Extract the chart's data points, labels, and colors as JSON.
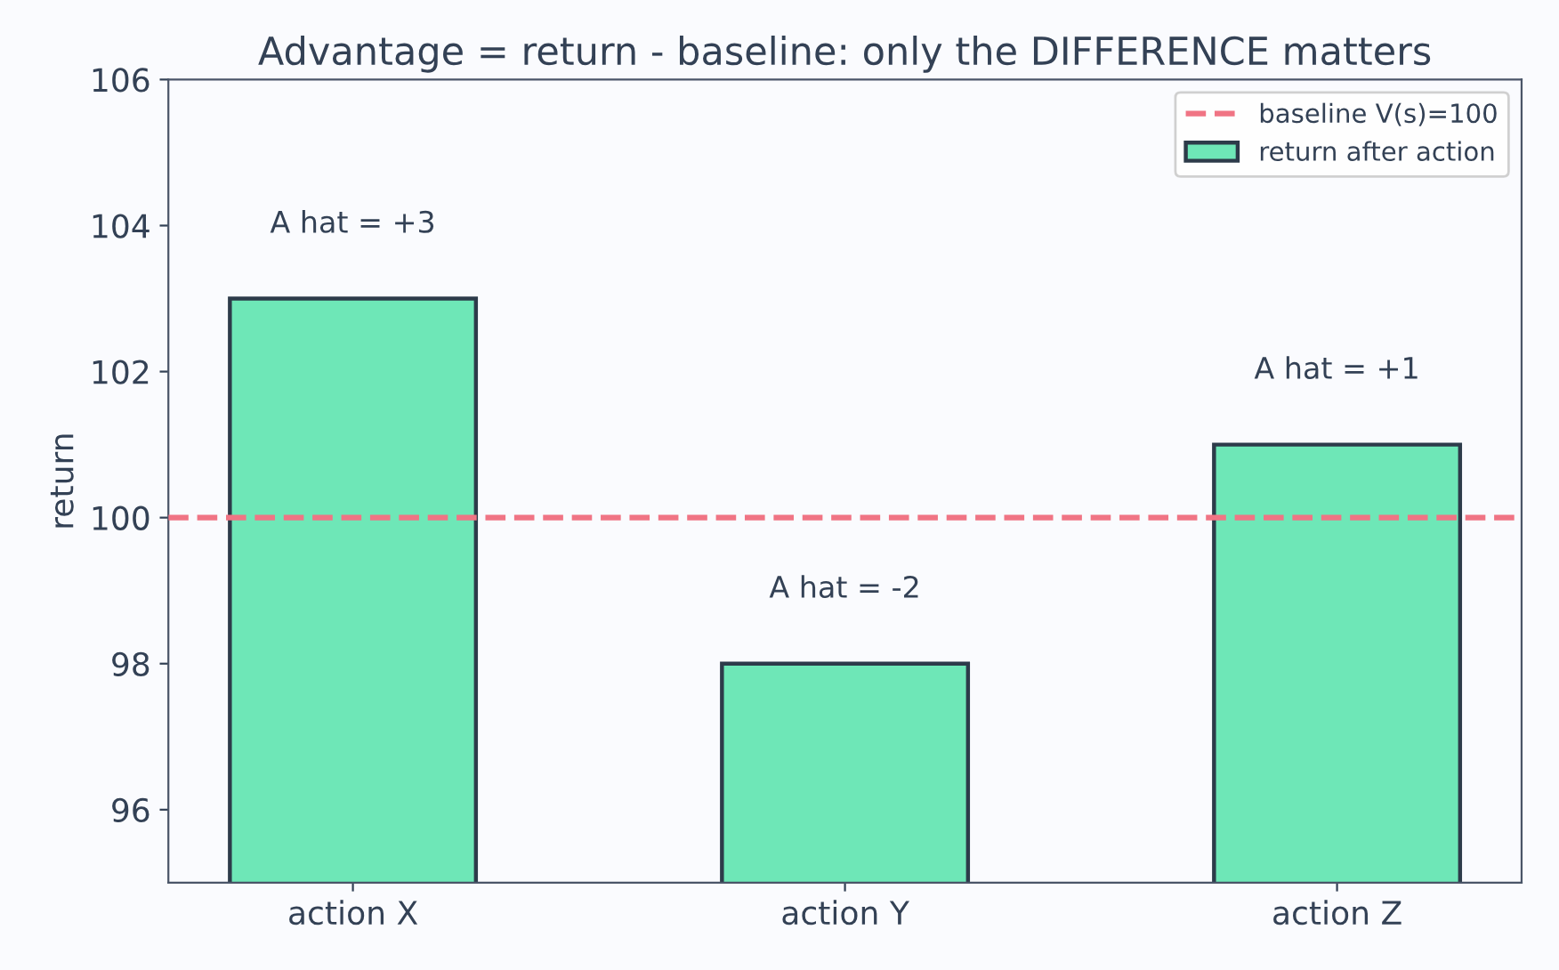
{
  "chart_data": {
    "type": "bar",
    "title": "Advantage = return - baseline: only the DIFFERENCE matters",
    "ylabel": "return",
    "categories": [
      "action X",
      "action Y",
      "action Z"
    ],
    "series": [
      {
        "name": "return after action",
        "color": "#6ee7b7",
        "values": [
          103,
          98,
          101
        ]
      }
    ],
    "ylim": [
      95,
      106
    ],
    "yticks": [
      96,
      98,
      100,
      102,
      104,
      106
    ],
    "ref_lines": [
      {
        "axis": "y",
        "value": 100,
        "label": "baseline V(s)=100",
        "color": "#f07484",
        "line_style": "dashed"
      }
    ],
    "annotations": [
      "A hat = +3",
      "A hat = -2",
      "A hat = +1"
    ],
    "grid": false,
    "legend": "top right"
  }
}
